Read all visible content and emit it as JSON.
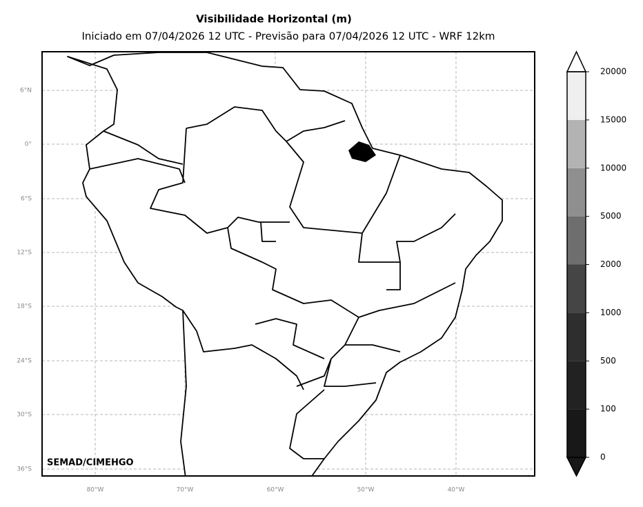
{
  "header": {
    "title": "Visibilidade Horizontal (m)",
    "subtitle": "Iniciado em 07/04/2026 12 UTC - Previsão para 07/04/2026 12 UTC - WRF 12km"
  },
  "map": {
    "lat_labels": [
      "6°N",
      "0°",
      "6°S",
      "12°S",
      "18°S",
      "24°S",
      "30°S",
      "36°S"
    ],
    "lon_labels": [
      "80°W",
      "70°W",
      "60°W",
      "50°W",
      "40°W"
    ],
    "credit": "SEMAD/CIMEHGO"
  },
  "colorbar": {
    "labels": [
      0,
      100,
      500,
      1000,
      2000,
      5000,
      10000,
      15000,
      20000
    ],
    "colors": [
      "#181818",
      "#222222",
      "#2e2e2e",
      "#454545",
      "#6e6e6e",
      "#8f8f8f",
      "#b3b3b3",
      "#efefef"
    ],
    "under_color": "#181818",
    "over_color": "#ffffff"
  }
}
